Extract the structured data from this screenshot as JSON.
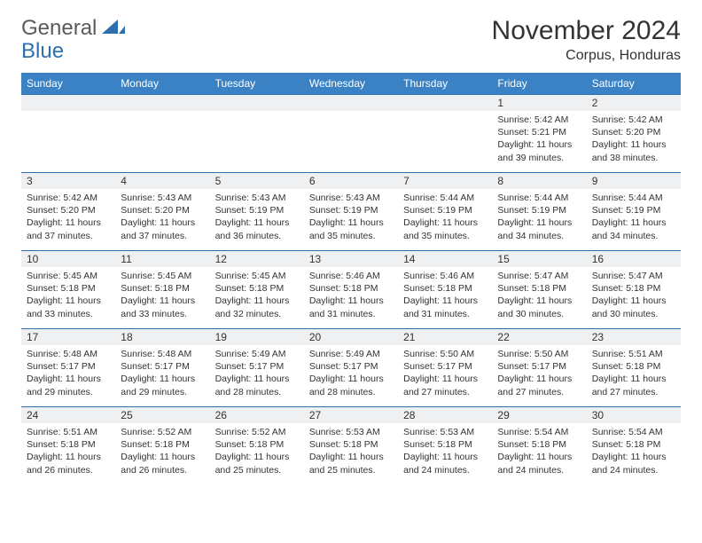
{
  "logo": {
    "part1": "General",
    "part2": "Blue"
  },
  "title": "November 2024",
  "subtitle": "Corpus, Honduras",
  "weekdays": [
    "Sunday",
    "Monday",
    "Tuesday",
    "Wednesday",
    "Thursday",
    "Friday",
    "Saturday"
  ],
  "colors": {
    "header_bg": "#3b82c4",
    "row_border": "#2f6fb0",
    "daynum_bg": "#eef0f2",
    "logo_gray": "#5a5a5a",
    "logo_blue": "#2f6fb0"
  },
  "weeks": [
    [
      null,
      null,
      null,
      null,
      null,
      {
        "n": "1",
        "sr": "Sunrise: 5:42 AM",
        "ss": "Sunset: 5:21 PM",
        "d1": "Daylight: 11 hours",
        "d2": "and 39 minutes."
      },
      {
        "n": "2",
        "sr": "Sunrise: 5:42 AM",
        "ss": "Sunset: 5:20 PM",
        "d1": "Daylight: 11 hours",
        "d2": "and 38 minutes."
      }
    ],
    [
      {
        "n": "3",
        "sr": "Sunrise: 5:42 AM",
        "ss": "Sunset: 5:20 PM",
        "d1": "Daylight: 11 hours",
        "d2": "and 37 minutes."
      },
      {
        "n": "4",
        "sr": "Sunrise: 5:43 AM",
        "ss": "Sunset: 5:20 PM",
        "d1": "Daylight: 11 hours",
        "d2": "and 37 minutes."
      },
      {
        "n": "5",
        "sr": "Sunrise: 5:43 AM",
        "ss": "Sunset: 5:19 PM",
        "d1": "Daylight: 11 hours",
        "d2": "and 36 minutes."
      },
      {
        "n": "6",
        "sr": "Sunrise: 5:43 AM",
        "ss": "Sunset: 5:19 PM",
        "d1": "Daylight: 11 hours",
        "d2": "and 35 minutes."
      },
      {
        "n": "7",
        "sr": "Sunrise: 5:44 AM",
        "ss": "Sunset: 5:19 PM",
        "d1": "Daylight: 11 hours",
        "d2": "and 35 minutes."
      },
      {
        "n": "8",
        "sr": "Sunrise: 5:44 AM",
        "ss": "Sunset: 5:19 PM",
        "d1": "Daylight: 11 hours",
        "d2": "and 34 minutes."
      },
      {
        "n": "9",
        "sr": "Sunrise: 5:44 AM",
        "ss": "Sunset: 5:19 PM",
        "d1": "Daylight: 11 hours",
        "d2": "and 34 minutes."
      }
    ],
    [
      {
        "n": "10",
        "sr": "Sunrise: 5:45 AM",
        "ss": "Sunset: 5:18 PM",
        "d1": "Daylight: 11 hours",
        "d2": "and 33 minutes."
      },
      {
        "n": "11",
        "sr": "Sunrise: 5:45 AM",
        "ss": "Sunset: 5:18 PM",
        "d1": "Daylight: 11 hours",
        "d2": "and 33 minutes."
      },
      {
        "n": "12",
        "sr": "Sunrise: 5:45 AM",
        "ss": "Sunset: 5:18 PM",
        "d1": "Daylight: 11 hours",
        "d2": "and 32 minutes."
      },
      {
        "n": "13",
        "sr": "Sunrise: 5:46 AM",
        "ss": "Sunset: 5:18 PM",
        "d1": "Daylight: 11 hours",
        "d2": "and 31 minutes."
      },
      {
        "n": "14",
        "sr": "Sunrise: 5:46 AM",
        "ss": "Sunset: 5:18 PM",
        "d1": "Daylight: 11 hours",
        "d2": "and 31 minutes."
      },
      {
        "n": "15",
        "sr": "Sunrise: 5:47 AM",
        "ss": "Sunset: 5:18 PM",
        "d1": "Daylight: 11 hours",
        "d2": "and 30 minutes."
      },
      {
        "n": "16",
        "sr": "Sunrise: 5:47 AM",
        "ss": "Sunset: 5:18 PM",
        "d1": "Daylight: 11 hours",
        "d2": "and 30 minutes."
      }
    ],
    [
      {
        "n": "17",
        "sr": "Sunrise: 5:48 AM",
        "ss": "Sunset: 5:17 PM",
        "d1": "Daylight: 11 hours",
        "d2": "and 29 minutes."
      },
      {
        "n": "18",
        "sr": "Sunrise: 5:48 AM",
        "ss": "Sunset: 5:17 PM",
        "d1": "Daylight: 11 hours",
        "d2": "and 29 minutes."
      },
      {
        "n": "19",
        "sr": "Sunrise: 5:49 AM",
        "ss": "Sunset: 5:17 PM",
        "d1": "Daylight: 11 hours",
        "d2": "and 28 minutes."
      },
      {
        "n": "20",
        "sr": "Sunrise: 5:49 AM",
        "ss": "Sunset: 5:17 PM",
        "d1": "Daylight: 11 hours",
        "d2": "and 28 minutes."
      },
      {
        "n": "21",
        "sr": "Sunrise: 5:50 AM",
        "ss": "Sunset: 5:17 PM",
        "d1": "Daylight: 11 hours",
        "d2": "and 27 minutes."
      },
      {
        "n": "22",
        "sr": "Sunrise: 5:50 AM",
        "ss": "Sunset: 5:17 PM",
        "d1": "Daylight: 11 hours",
        "d2": "and 27 minutes."
      },
      {
        "n": "23",
        "sr": "Sunrise: 5:51 AM",
        "ss": "Sunset: 5:18 PM",
        "d1": "Daylight: 11 hours",
        "d2": "and 27 minutes."
      }
    ],
    [
      {
        "n": "24",
        "sr": "Sunrise: 5:51 AM",
        "ss": "Sunset: 5:18 PM",
        "d1": "Daylight: 11 hours",
        "d2": "and 26 minutes."
      },
      {
        "n": "25",
        "sr": "Sunrise: 5:52 AM",
        "ss": "Sunset: 5:18 PM",
        "d1": "Daylight: 11 hours",
        "d2": "and 26 minutes."
      },
      {
        "n": "26",
        "sr": "Sunrise: 5:52 AM",
        "ss": "Sunset: 5:18 PM",
        "d1": "Daylight: 11 hours",
        "d2": "and 25 minutes."
      },
      {
        "n": "27",
        "sr": "Sunrise: 5:53 AM",
        "ss": "Sunset: 5:18 PM",
        "d1": "Daylight: 11 hours",
        "d2": "and 25 minutes."
      },
      {
        "n": "28",
        "sr": "Sunrise: 5:53 AM",
        "ss": "Sunset: 5:18 PM",
        "d1": "Daylight: 11 hours",
        "d2": "and 24 minutes."
      },
      {
        "n": "29",
        "sr": "Sunrise: 5:54 AM",
        "ss": "Sunset: 5:18 PM",
        "d1": "Daylight: 11 hours",
        "d2": "and 24 minutes."
      },
      {
        "n": "30",
        "sr": "Sunrise: 5:54 AM",
        "ss": "Sunset: 5:18 PM",
        "d1": "Daylight: 11 hours",
        "d2": "and 24 minutes."
      }
    ]
  ]
}
